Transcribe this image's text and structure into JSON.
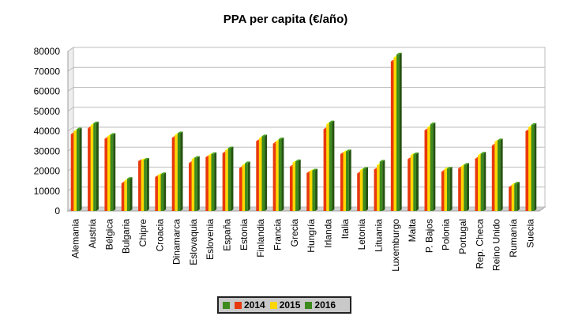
{
  "chart_data": {
    "type": "bar",
    "title": "PPA per capita (€/año)",
    "xlabel": "",
    "ylabel": "",
    "ylim": [
      0,
      80000
    ],
    "yticks": [
      0,
      10000,
      20000,
      30000,
      40000,
      50000,
      60000,
      70000,
      80000
    ],
    "grid": true,
    "legend_position": "bottom",
    "categories": [
      "Alemania",
      "Austria",
      "Bélgica",
      "Bulgaria",
      "Chipre",
      "Croacia",
      "Dinamarca",
      "Eslovaquia",
      "Eslovenia",
      "España",
      "Estonia",
      "Finlandia",
      "Francia",
      "Grecia",
      "Hungría",
      "Irlanda",
      "Italia",
      "Letonia",
      "Lituania",
      "Luxemburgo",
      "Malta",
      "P. Bajos",
      "Polonia",
      "Portugal",
      "Rep. Checa",
      "Reino Unido",
      "Rumanía",
      "Suecia"
    ],
    "series": [
      {
        "name": "2014",
        "color": "#e8380d",
        "values": [
          38500,
          41500,
          36200,
          13900,
          25000,
          17000,
          36700,
          24000,
          27000,
          29000,
          21500,
          35000,
          33800,
          22300,
          19000,
          41000,
          28500,
          18800,
          20800,
          75000,
          26000,
          40500,
          19700,
          21300,
          26200,
          32800,
          12000,
          40000
        ]
      },
      {
        "name": "2015",
        "color": "#ffd700",
        "values": [
          40000,
          43000,
          37500,
          15200,
          25500,
          18000,
          38100,
          26000,
          28000,
          30500,
          23000,
          36500,
          35000,
          24300,
          20000,
          43500,
          29500,
          20500,
          23000,
          77000,
          28000,
          42000,
          21000,
          22500,
          28000,
          34800,
          13200,
          42000
        ]
      },
      {
        "name": "2016",
        "color": "#3d8b1c",
        "values": [
          41000,
          44000,
          38200,
          16200,
          25800,
          18500,
          39000,
          26700,
          28600,
          31500,
          24000,
          37500,
          36000,
          25000,
          20400,
          44500,
          30000,
          21200,
          24800,
          78500,
          28500,
          43500,
          21300,
          23200,
          28800,
          35500,
          13800,
          43200
        ]
      }
    ],
    "legend_extra_marker_color": "#3d8b1c"
  }
}
